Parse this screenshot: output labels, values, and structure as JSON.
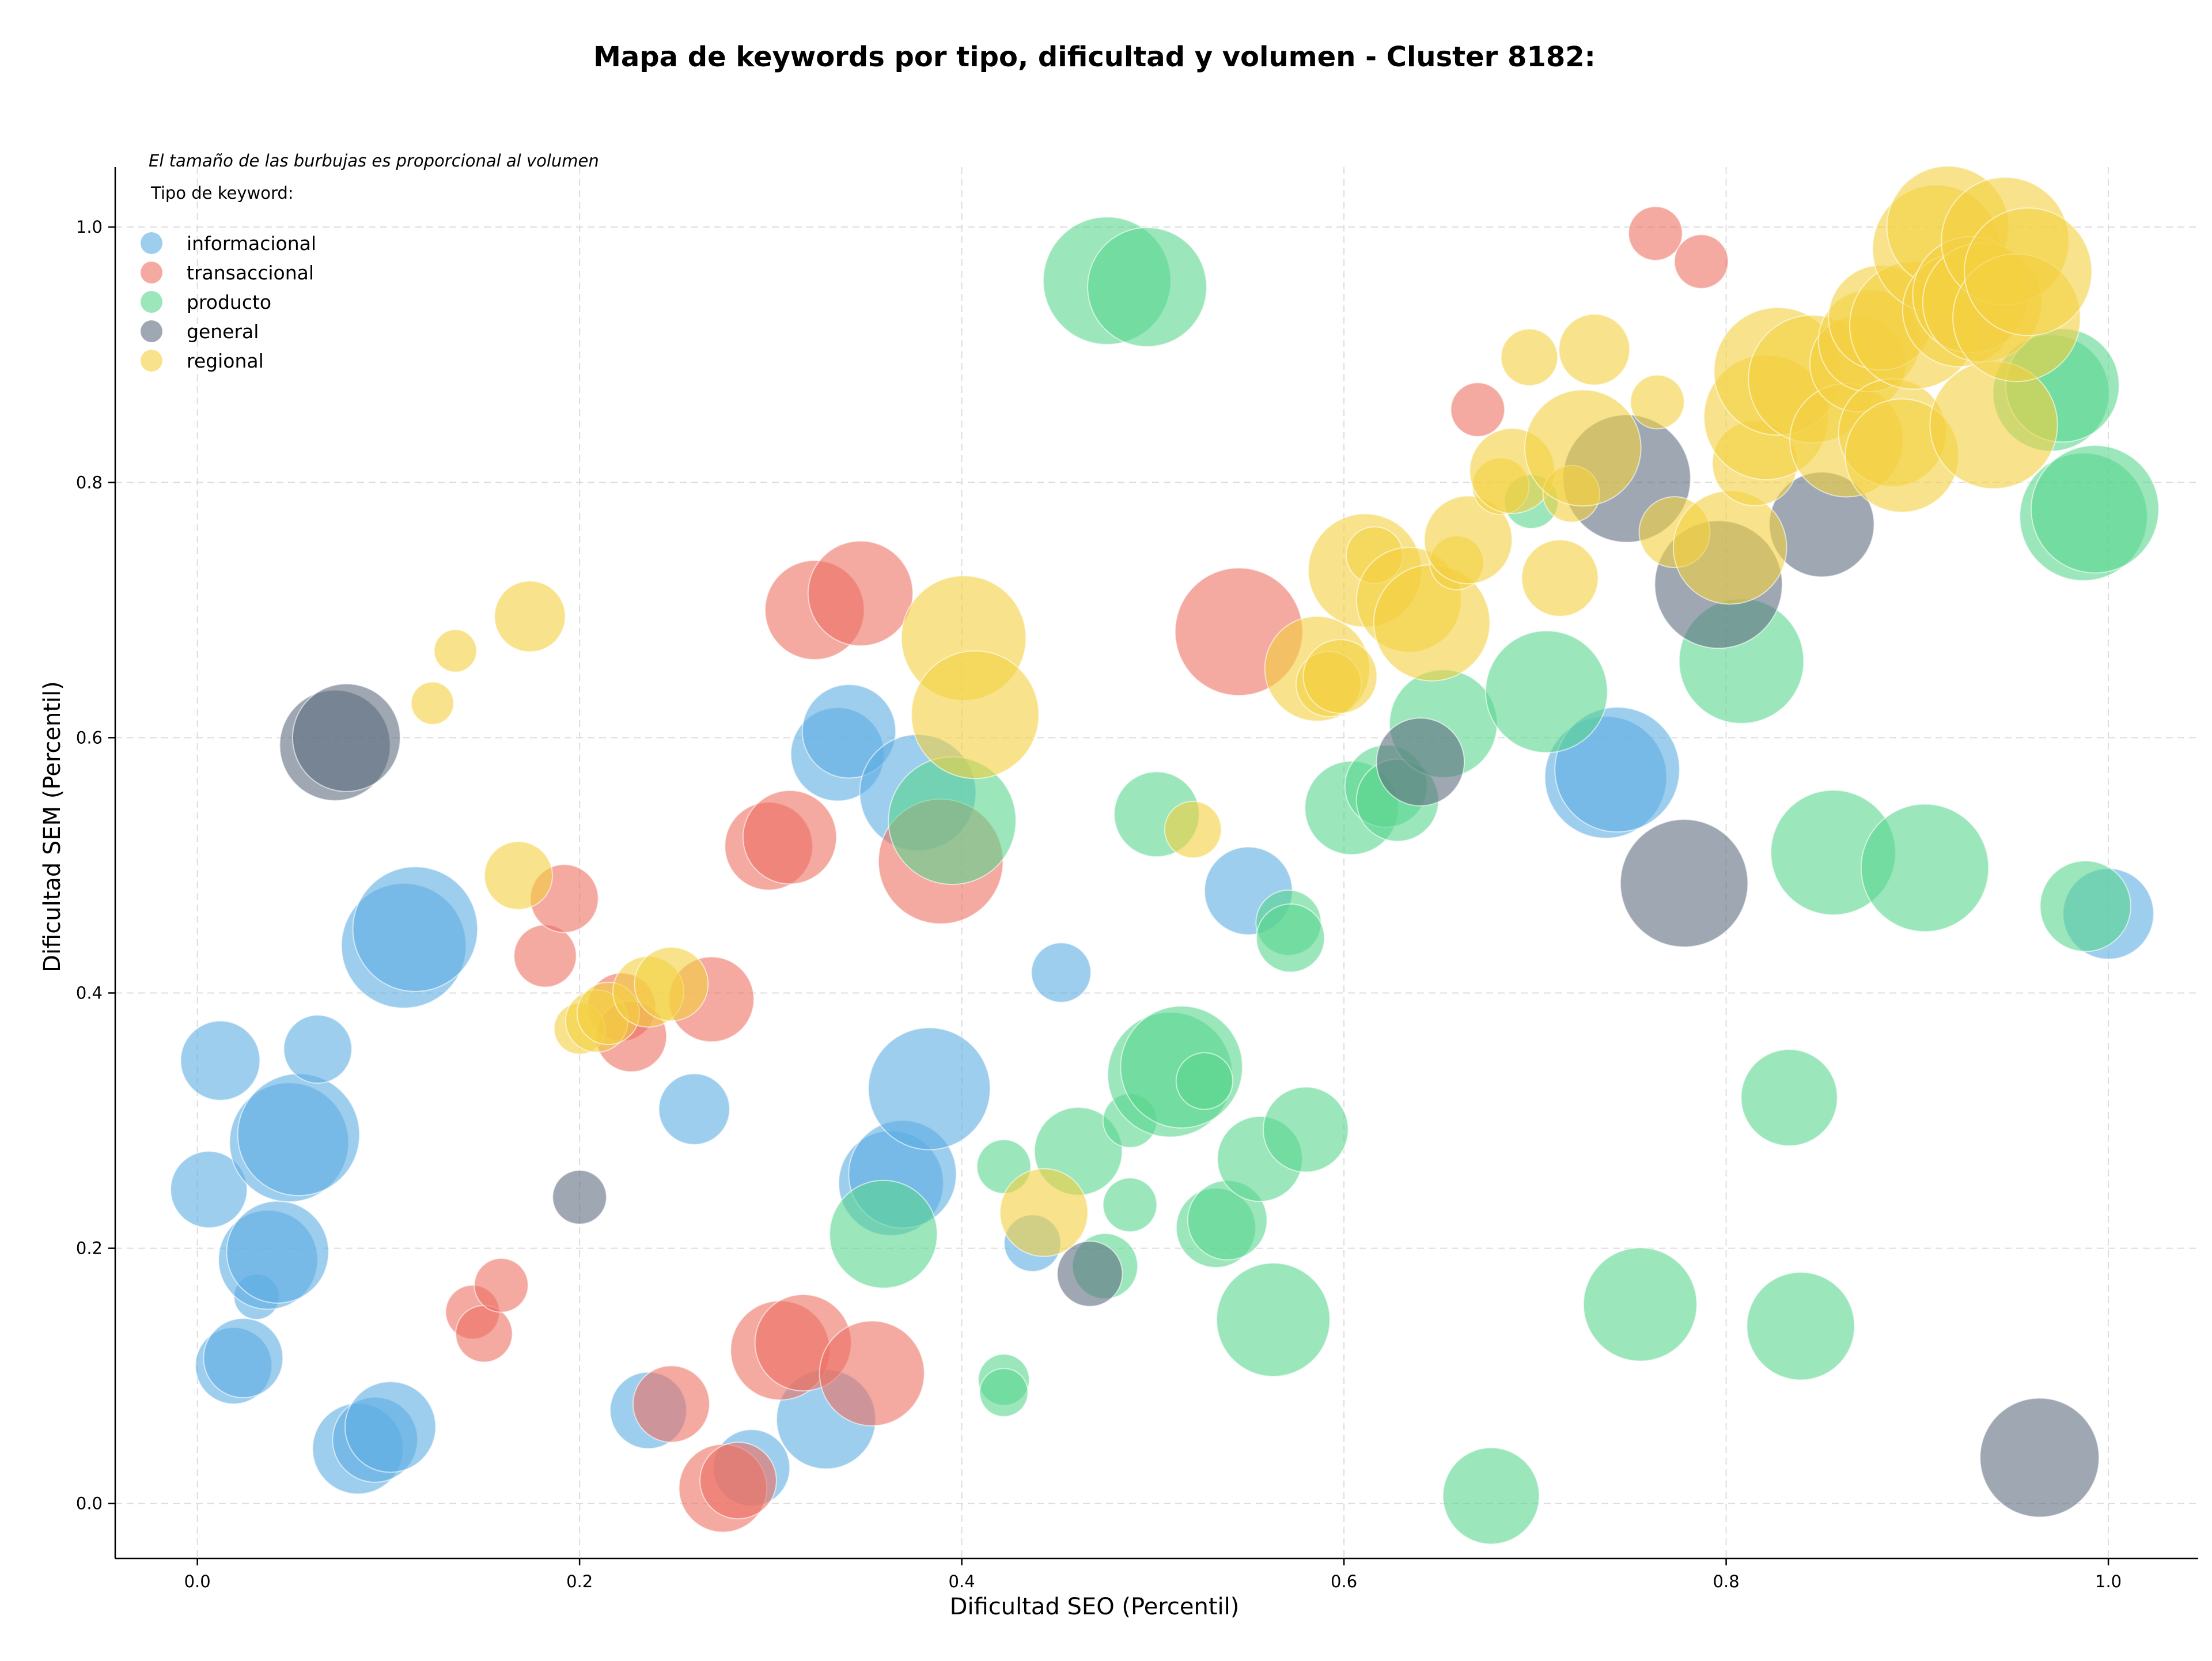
{
  "chart_data": {
    "type": "scatter",
    "title": "Mapa de keywords por tipo, dificultad y volumen - Cluster 8182:",
    "xlabel": "Dificultad SEO (Percentil)",
    "ylabel": "Dificultad SEM (Percentil)",
    "xlim": [
      -0.043,
      1.047
    ],
    "ylim": [
      -0.043,
      1.047
    ],
    "xticks": [
      0.0,
      0.2,
      0.4,
      0.6,
      0.8,
      1.0
    ],
    "yticks": [
      0.0,
      0.2,
      0.4,
      0.6,
      0.8,
      1.0
    ],
    "tick_labels": [
      "0.0",
      "0.2",
      "0.4",
      "0.6",
      "0.8",
      "1.0"
    ],
    "grid": true,
    "note": "El tamaño de las burbujas es proporcional al volumen",
    "legend_title": "Tipo de keyword:",
    "legend_position": "top-left",
    "series": [
      {
        "name": "informacional",
        "color": "#5DADE2",
        "points": [
          {
            "x": 0.012,
            "y": 0.347,
            "size": 28
          },
          {
            "x": 0.006,
            "y": 0.246,
            "size": 27
          },
          {
            "x": 0.031,
            "y": 0.162,
            "size": 16
          },
          {
            "x": 0.037,
            "y": 0.191,
            "size": 35
          },
          {
            "x": 0.042,
            "y": 0.197,
            "size": 36
          },
          {
            "x": 0.019,
            "y": 0.108,
            "size": 27
          },
          {
            "x": 0.024,
            "y": 0.114,
            "size": 28
          },
          {
            "x": 0.048,
            "y": 0.283,
            "size": 42
          },
          {
            "x": 0.053,
            "y": 0.289,
            "size": 43
          },
          {
            "x": 0.063,
            "y": 0.356,
            "size": 24
          },
          {
            "x": 0.084,
            "y": 0.043,
            "size": 32
          },
          {
            "x": 0.093,
            "y": 0.05,
            "size": 30
          },
          {
            "x": 0.101,
            "y": 0.06,
            "size": 32
          },
          {
            "x": 0.108,
            "y": 0.437,
            "size": 44
          },
          {
            "x": 0.114,
            "y": 0.45,
            "size": 44
          },
          {
            "x": 0.236,
            "y": 0.073,
            "size": 27
          },
          {
            "x": 0.26,
            "y": 0.309,
            "size": 25
          },
          {
            "x": 0.29,
            "y": 0.028,
            "size": 27
          },
          {
            "x": 0.329,
            "y": 0.066,
            "size": 35
          },
          {
            "x": 0.335,
            "y": 0.587,
            "size": 33
          },
          {
            "x": 0.341,
            "y": 0.605,
            "size": 33
          },
          {
            "x": 0.363,
            "y": 0.251,
            "size": 37
          },
          {
            "x": 0.369,
            "y": 0.258,
            "size": 38
          },
          {
            "x": 0.377,
            "y": 0.557,
            "size": 41
          },
          {
            "x": 0.383,
            "y": 0.325,
            "size": 43
          },
          {
            "x": 0.437,
            "y": 0.204,
            "size": 20
          },
          {
            "x": 0.452,
            "y": 0.416,
            "size": 21
          },
          {
            "x": 0.55,
            "y": 0.48,
            "size": 31
          },
          {
            "x": 0.737,
            "y": 0.569,
            "size": 43
          },
          {
            "x": 0.743,
            "y": 0.575,
            "size": 44
          },
          {
            "x": 1.0,
            "y": 0.462,
            "size": 32
          }
        ]
      },
      {
        "name": "transaccional",
        "color": "#EC7063",
        "points": [
          {
            "x": 0.144,
            "y": 0.15,
            "size": 19
          },
          {
            "x": 0.15,
            "y": 0.133,
            "size": 20
          },
          {
            "x": 0.159,
            "y": 0.171,
            "size": 19
          },
          {
            "x": 0.182,
            "y": 0.429,
            "size": 22
          },
          {
            "x": 0.192,
            "y": 0.474,
            "size": 24
          },
          {
            "x": 0.222,
            "y": 0.389,
            "size": 24
          },
          {
            "x": 0.227,
            "y": 0.366,
            "size": 25
          },
          {
            "x": 0.248,
            "y": 0.078,
            "size": 27
          },
          {
            "x": 0.269,
            "y": 0.395,
            "size": 30
          },
          {
            "x": 0.275,
            "y": 0.012,
            "size": 31
          },
          {
            "x": 0.283,
            "y": 0.018,
            "size": 27
          },
          {
            "x": 0.299,
            "y": 0.515,
            "size": 31
          },
          {
            "x": 0.31,
            "y": 0.522,
            "size": 33
          },
          {
            "x": 0.305,
            "y": 0.12,
            "size": 35
          },
          {
            "x": 0.317,
            "y": 0.126,
            "size": 34
          },
          {
            "x": 0.323,
            "y": 0.7,
            "size": 35
          },
          {
            "x": 0.347,
            "y": 0.713,
            "size": 37
          },
          {
            "x": 0.353,
            "y": 0.102,
            "size": 37
          },
          {
            "x": 0.389,
            "y": 0.503,
            "size": 44
          },
          {
            "x": 0.545,
            "y": 0.683,
            "size": 45
          },
          {
            "x": 0.67,
            "y": 0.857,
            "size": 19
          },
          {
            "x": 0.763,
            "y": 0.995,
            "size": 19
          },
          {
            "x": 0.787,
            "y": 0.973,
            "size": 19
          }
        ]
      },
      {
        "name": "producto",
        "color": "#58D68D",
        "points": [
          {
            "x": 0.359,
            "y": 0.211,
            "size": 38
          },
          {
            "x": 0.395,
            "y": 0.535,
            "size": 45
          },
          {
            "x": 0.422,
            "y": 0.264,
            "size": 19
          },
          {
            "x": 0.422,
            "y": 0.097,
            "size": 18
          },
          {
            "x": 0.422,
            "y": 0.087,
            "size": 17
          },
          {
            "x": 0.461,
            "y": 0.276,
            "size": 31
          },
          {
            "x": 0.475,
            "y": 0.186,
            "size": 23
          },
          {
            "x": 0.476,
            "y": 0.958,
            "size": 45
          },
          {
            "x": 0.488,
            "y": 0.3,
            "size": 19
          },
          {
            "x": 0.488,
            "y": 0.234,
            "size": 19
          },
          {
            "x": 0.497,
            "y": 0.953,
            "size": 42
          },
          {
            "x": 0.502,
            "y": 0.54,
            "size": 30
          },
          {
            "x": 0.509,
            "y": 0.336,
            "size": 44
          },
          {
            "x": 0.515,
            "y": 0.342,
            "size": 43
          },
          {
            "x": 0.527,
            "y": 0.331,
            "size": 20
          },
          {
            "x": 0.533,
            "y": 0.216,
            "size": 28
          },
          {
            "x": 0.539,
            "y": 0.222,
            "size": 28
          },
          {
            "x": 0.556,
            "y": 0.27,
            "size": 30
          },
          {
            "x": 0.563,
            "y": 0.144,
            "size": 40
          },
          {
            "x": 0.571,
            "y": 0.455,
            "size": 23
          },
          {
            "x": 0.572,
            "y": 0.443,
            "size": 24
          },
          {
            "x": 0.58,
            "y": 0.293,
            "size": 30
          },
          {
            "x": 0.604,
            "y": 0.545,
            "size": 33
          },
          {
            "x": 0.622,
            "y": 0.562,
            "size": 29
          },
          {
            "x": 0.628,
            "y": 0.551,
            "size": 29
          },
          {
            "x": 0.652,
            "y": 0.611,
            "size": 38
          },
          {
            "x": 0.677,
            "y": 0.006,
            "size": 34
          },
          {
            "x": 0.698,
            "y": 0.785,
            "size": 19
          },
          {
            "x": 0.706,
            "y": 0.636,
            "size": 43
          },
          {
            "x": 0.755,
            "y": 0.156,
            "size": 40
          },
          {
            "x": 0.808,
            "y": 0.66,
            "size": 44
          },
          {
            "x": 0.833,
            "y": 0.318,
            "size": 34
          },
          {
            "x": 0.839,
            "y": 0.139,
            "size": 38
          },
          {
            "x": 0.856,
            "y": 0.51,
            "size": 44
          },
          {
            "x": 0.904,
            "y": 0.498,
            "size": 45
          },
          {
            "x": 0.97,
            "y": 0.87,
            "size": 41
          },
          {
            "x": 0.976,
            "y": 0.876,
            "size": 40
          },
          {
            "x": 0.988,
            "y": 0.468,
            "size": 32
          },
          {
            "x": 0.987,
            "y": 0.773,
            "size": 45
          },
          {
            "x": 0.993,
            "y": 0.779,
            "size": 45
          }
        ]
      },
      {
        "name": "general",
        "color": "#5D6D7E",
        "points": [
          {
            "x": 0.072,
            "y": 0.594,
            "size": 39
          },
          {
            "x": 0.078,
            "y": 0.6,
            "size": 38
          },
          {
            "x": 0.2,
            "y": 0.24,
            "size": 19
          },
          {
            "x": 0.467,
            "y": 0.18,
            "size": 23
          },
          {
            "x": 0.64,
            "y": 0.581,
            "size": 31
          },
          {
            "x": 0.748,
            "y": 0.803,
            "size": 45
          },
          {
            "x": 0.778,
            "y": 0.486,
            "size": 45
          },
          {
            "x": 0.796,
            "y": 0.72,
            "size": 45
          },
          {
            "x": 0.85,
            "y": 0.767,
            "size": 37
          },
          {
            "x": 0.964,
            "y": 0.036,
            "size": 42
          }
        ]
      },
      {
        "name": "regional",
        "color": "#F4D03F",
        "points": [
          {
            "x": 0.123,
            "y": 0.627,
            "size": 15
          },
          {
            "x": 0.135,
            "y": 0.668,
            "size": 15
          },
          {
            "x": 0.168,
            "y": 0.492,
            "size": 24
          },
          {
            "x": 0.174,
            "y": 0.695,
            "size": 25
          },
          {
            "x": 0.2,
            "y": 0.372,
            "size": 18
          },
          {
            "x": 0.209,
            "y": 0.378,
            "size": 22
          },
          {
            "x": 0.215,
            "y": 0.384,
            "size": 22
          },
          {
            "x": 0.236,
            "y": 0.401,
            "size": 25
          },
          {
            "x": 0.248,
            "y": 0.407,
            "size": 26
          },
          {
            "x": 0.401,
            "y": 0.678,
            "size": 44
          },
          {
            "x": 0.407,
            "y": 0.618,
            "size": 45
          },
          {
            "x": 0.443,
            "y": 0.228,
            "size": 31
          },
          {
            "x": 0.521,
            "y": 0.528,
            "size": 20
          },
          {
            "x": 0.586,
            "y": 0.654,
            "size": 37
          },
          {
            "x": 0.592,
            "y": 0.642,
            "size": 23
          },
          {
            "x": 0.598,
            "y": 0.648,
            "size": 26
          },
          {
            "x": 0.611,
            "y": 0.731,
            "size": 40
          },
          {
            "x": 0.616,
            "y": 0.743,
            "size": 20
          },
          {
            "x": 0.634,
            "y": 0.708,
            "size": 37
          },
          {
            "x": 0.646,
            "y": 0.69,
            "size": 41
          },
          {
            "x": 0.659,
            "y": 0.737,
            "size": 19
          },
          {
            "x": 0.665,
            "y": 0.755,
            "size": 31
          },
          {
            "x": 0.682,
            "y": 0.797,
            "size": 20
          },
          {
            "x": 0.688,
            "y": 0.809,
            "size": 30
          },
          {
            "x": 0.697,
            "y": 0.898,
            "size": 20
          },
          {
            "x": 0.713,
            "y": 0.725,
            "size": 27
          },
          {
            "x": 0.719,
            "y": 0.791,
            "size": 20
          },
          {
            "x": 0.725,
            "y": 0.827,
            "size": 41
          },
          {
            "x": 0.731,
            "y": 0.904,
            "size": 25
          },
          {
            "x": 0.764,
            "y": 0.863,
            "size": 19
          },
          {
            "x": 0.773,
            "y": 0.761,
            "size": 25
          },
          {
            "x": 0.802,
            "y": 0.749,
            "size": 40
          },
          {
            "x": 0.815,
            "y": 0.815,
            "size": 30
          },
          {
            "x": 0.821,
            "y": 0.851,
            "size": 44
          },
          {
            "x": 0.827,
            "y": 0.887,
            "size": 45
          },
          {
            "x": 0.845,
            "y": 0.881,
            "size": 45
          },
          {
            "x": 0.863,
            "y": 0.833,
            "size": 40
          },
          {
            "x": 0.869,
            "y": 0.893,
            "size": 34
          },
          {
            "x": 0.875,
            "y": 0.911,
            "size": 36
          },
          {
            "x": 0.881,
            "y": 0.929,
            "size": 37
          },
          {
            "x": 0.887,
            "y": 0.839,
            "size": 38
          },
          {
            "x": 0.892,
            "y": 0.821,
            "size": 40
          },
          {
            "x": 0.898,
            "y": 0.923,
            "size": 45
          },
          {
            "x": 0.91,
            "y": 0.983,
            "size": 45
          },
          {
            "x": 0.916,
            "y": 1.0,
            "size": 43
          },
          {
            "x": 0.922,
            "y": 0.935,
            "size": 40
          },
          {
            "x": 0.928,
            "y": 0.947,
            "size": 41
          },
          {
            "x": 0.934,
            "y": 0.941,
            "size": 42
          },
          {
            "x": 0.94,
            "y": 0.845,
            "size": 45
          },
          {
            "x": 0.946,
            "y": 0.989,
            "size": 45
          },
          {
            "x": 0.952,
            "y": 0.929,
            "size": 45
          },
          {
            "x": 0.958,
            "y": 0.965,
            "size": 45
          }
        ]
      }
    ]
  }
}
